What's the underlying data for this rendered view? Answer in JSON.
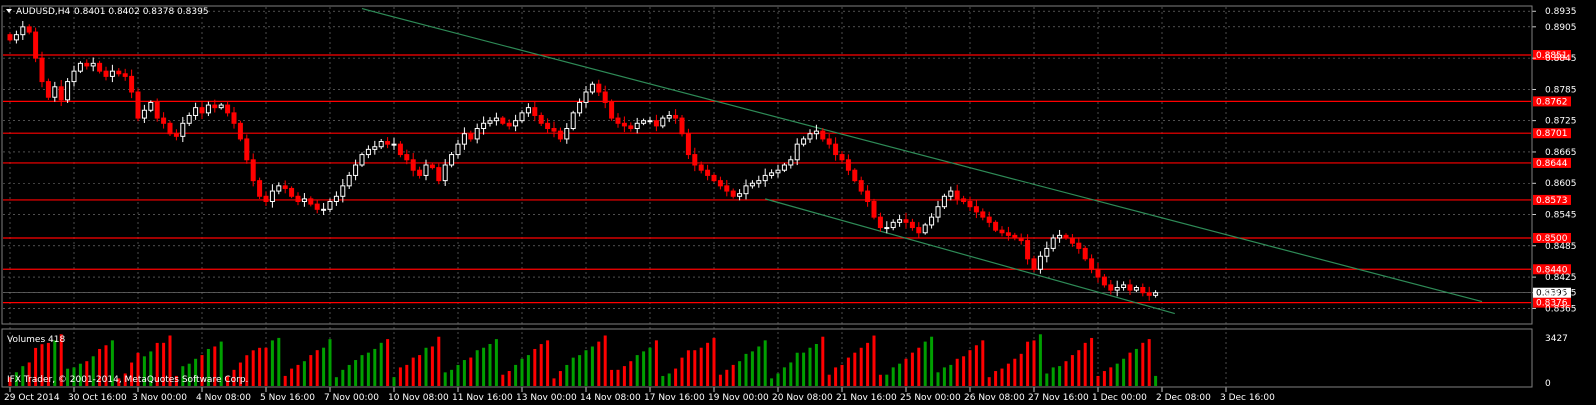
{
  "header": {
    "symbol": "AUDUSD,H4",
    "ohlc": "0.8401 0.8402 0.8378 0.8395"
  },
  "volume_panel": {
    "label": "Volumes 418",
    "max_label": "3427",
    "zero_label": "0"
  },
  "watermark": "IFX Trader, © 2001-2014, MetaQuotes Software Corp.",
  "colors": {
    "up": "#ffffff",
    "down": "#ff0000",
    "grid": "#7f7f7f",
    "hline": "#ff0000",
    "channel": "#2e8b57",
    "vol_up": "#00a000",
    "vol_down": "#ff0000"
  },
  "chart_data": {
    "type": "candlestick",
    "symbol": "AUDUSD",
    "timeframe": "H4",
    "ylim": [
      0.8335,
      0.8945
    ],
    "yticks": [
      "0.8935",
      "0.8905",
      "0.8845",
      "0.8785",
      "0.8725",
      "0.8665",
      "0.8605",
      "0.8545",
      "0.8485",
      "0.8425",
      "0.8395",
      "0.8365"
    ],
    "x_ticks": [
      {
        "label": "29 Oct 2014",
        "bar": 0
      },
      {
        "label": "30 Oct 16:00",
        "bar": 10
      },
      {
        "label": "3 Nov 00:00",
        "bar": 20
      },
      {
        "label": "4 Nov 08:00",
        "bar": 30
      },
      {
        "label": "5 Nov 16:00",
        "bar": 40
      },
      {
        "label": "7 Nov 00:00",
        "bar": 50
      },
      {
        "label": "10 Nov 08:00",
        "bar": 60
      },
      {
        "label": "11 Nov 16:00",
        "bar": 70
      },
      {
        "label": "13 Nov 00:00",
        "bar": 80
      },
      {
        "label": "14 Nov 08:00",
        "bar": 90
      },
      {
        "label": "17 Nov 16:00",
        "bar": 100
      },
      {
        "label": "19 Nov 00:00",
        "bar": 110
      },
      {
        "label": "20 Nov 08:00",
        "bar": 120
      },
      {
        "label": "21 Nov 16:00",
        "bar": 130
      },
      {
        "label": "25 Nov 00:00",
        "bar": 140
      },
      {
        "label": "26 Nov 08:00",
        "bar": 150
      },
      {
        "label": "27 Nov 16:00",
        "bar": 160
      },
      {
        "label": "1 Dec 00:00",
        "bar": 170
      },
      {
        "label": "2 Dec 08:00",
        "bar": 180
      },
      {
        "label": "3 Dec 16:00",
        "bar": 190
      }
    ],
    "close": [
      0.888,
      0.889,
      0.8905,
      0.8895,
      0.8845,
      0.88,
      0.877,
      0.879,
      0.8765,
      0.88,
      0.882,
      0.8835,
      0.883,
      0.8835,
      0.882,
      0.881,
      0.882,
      0.8815,
      0.881,
      0.878,
      0.873,
      0.8745,
      0.876,
      0.873,
      0.872,
      0.87,
      0.8695,
      0.872,
      0.8735,
      0.875,
      0.874,
      0.8755,
      0.875,
      0.8755,
      0.874,
      0.872,
      0.869,
      0.865,
      0.861,
      0.858,
      0.857,
      0.859,
      0.86,
      0.8595,
      0.858,
      0.857,
      0.8575,
      0.8565,
      0.8555,
      0.8555,
      0.857,
      0.858,
      0.86,
      0.862,
      0.864,
      0.866,
      0.867,
      0.8675,
      0.8685,
      0.868,
      0.868,
      0.866,
      0.865,
      0.863,
      0.862,
      0.864,
      0.8635,
      0.861,
      0.864,
      0.866,
      0.868,
      0.87,
      0.869,
      0.871,
      0.872,
      0.8725,
      0.873,
      0.872,
      0.8715,
      0.8725,
      0.874,
      0.875,
      0.8735,
      0.872,
      0.871,
      0.8705,
      0.869,
      0.871,
      0.874,
      0.876,
      0.878,
      0.8795,
      0.878,
      0.876,
      0.873,
      0.872,
      0.8715,
      0.871,
      0.872,
      0.8725,
      0.8725,
      0.8715,
      0.873,
      0.8735,
      0.873,
      0.87,
      0.866,
      0.864,
      0.863,
      0.862,
      0.861,
      0.86,
      0.859,
      0.858,
      0.8585,
      0.86,
      0.8605,
      0.861,
      0.862,
      0.8625,
      0.863,
      0.864,
      0.865,
      0.868,
      0.869,
      0.87,
      0.8705,
      0.869,
      0.868,
      0.866,
      0.865,
      0.863,
      0.861,
      0.859,
      0.857,
      0.854,
      0.852,
      0.852,
      0.853,
      0.8535,
      0.853,
      0.852,
      0.851,
      0.8525,
      0.854,
      0.856,
      0.858,
      0.859,
      0.8575,
      0.857,
      0.856,
      0.855,
      0.854,
      0.853,
      0.8515,
      0.851,
      0.8505,
      0.85,
      0.8495,
      0.846,
      0.844,
      0.8465,
      0.848,
      0.85,
      0.8505,
      0.85,
      0.849,
      0.848,
      0.846,
      0.844,
      0.8425,
      0.841,
      0.84,
      0.8405,
      0.841,
      0.84,
      0.8405,
      0.8395,
      0.839,
      0.8395
    ],
    "hlines": [
      {
        "price": 0.8851,
        "label": "0.8851"
      },
      {
        "price": 0.8762,
        "label": "0.8762"
      },
      {
        "price": 0.8701,
        "label": "0.8701"
      },
      {
        "price": 0.8644,
        "label": "0.8644"
      },
      {
        "price": 0.8573,
        "label": "0.8573"
      },
      {
        "price": 0.85,
        "label": "0.8500"
      },
      {
        "price": 0.844,
        "label": "0.8440"
      },
      {
        "price": 0.8376,
        "label": "0.8376"
      }
    ],
    "current_price": {
      "price": 0.8395,
      "label": "0.8395"
    },
    "channel_lines": [
      {
        "x1_bar": 55,
        "y1": 0.894,
        "x2_bar": 230,
        "y2": 0.8378
      },
      {
        "x1_bar": 118,
        "y1": 0.8575,
        "x2_bar": 182,
        "y2": 0.8355
      }
    ],
    "volume_max": 3427
  }
}
